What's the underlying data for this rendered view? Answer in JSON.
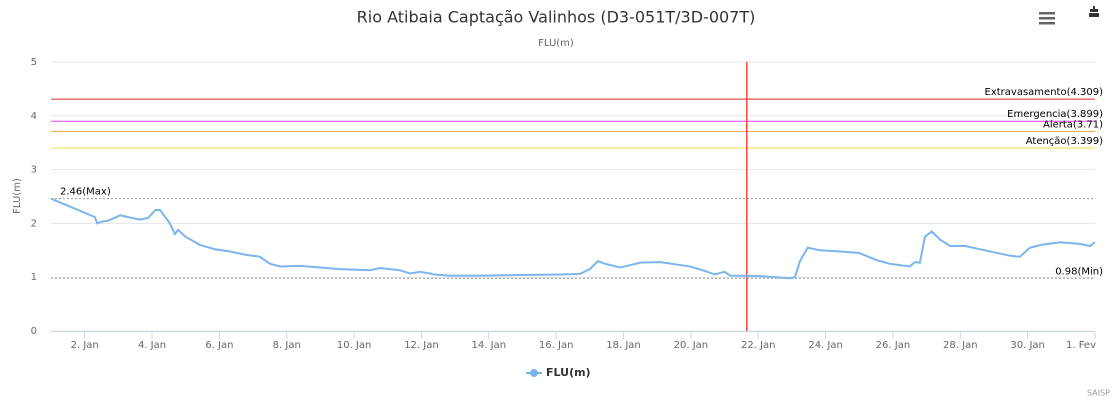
{
  "chart_data": {
    "type": "line",
    "title": "Rio Atibaia Captação Valinhos (D3-051T/3D-007T)",
    "subtitle": "FLU(m)",
    "y_label": "FLU(m)",
    "credit": "SAISP",
    "grid": true,
    "ylim": [
      0,
      5
    ],
    "yticks": [
      0,
      1,
      2,
      3,
      4,
      5
    ],
    "xlim": [
      1,
      32
    ],
    "xticks": [
      {
        "value": 2,
        "label": "2. Jan"
      },
      {
        "value": 4,
        "label": "4. Jan"
      },
      {
        "value": 6,
        "label": "6. Jan"
      },
      {
        "value": 8,
        "label": "8. Jan"
      },
      {
        "value": 10,
        "label": "10. Jan"
      },
      {
        "value": 12,
        "label": "12. Jan"
      },
      {
        "value": 14,
        "label": "14. Jan"
      },
      {
        "value": 16,
        "label": "16. Jan"
      },
      {
        "value": 18,
        "label": "18. Jan"
      },
      {
        "value": 20,
        "label": "20. Jan"
      },
      {
        "value": 22,
        "label": "22. Jan"
      },
      {
        "value": 24,
        "label": "24. Jan"
      },
      {
        "value": 26,
        "label": "26. Jan"
      },
      {
        "value": 28,
        "label": "28. Jan"
      },
      {
        "value": 30,
        "label": "30. Jan"
      },
      {
        "value": 32,
        "label": "1. Fev"
      }
    ],
    "plot_lines": [
      {
        "label": "Extravasamento(4.309)",
        "value": 4.309,
        "color": "#e0262b"
      },
      {
        "label": "Emergencia(3.899)",
        "value": 3.899,
        "color": "#ee3ff0"
      },
      {
        "label": "Alerta(3.71)",
        "value": 3.71,
        "color": "#f5a442"
      },
      {
        "label": "Atenção(3.399)",
        "value": 3.399,
        "color": "#eee24a"
      }
    ],
    "reference_lines": [
      {
        "label": "2.46(Max)",
        "value": 2.46,
        "position": "left"
      },
      {
        "label": "0.98(Min)",
        "value": 0.98,
        "position": "right"
      }
    ],
    "x_marker": {
      "value": 21.66,
      "color": "#ff4444"
    },
    "series": [
      {
        "name": "FLU(m)",
        "color": "#7cb5ec",
        "x": [
          1,
          2.3,
          2.37,
          2.5,
          2.7,
          3.05,
          3.64,
          3.88,
          4.1,
          4.24,
          4.53,
          4.68,
          4.77,
          5.0,
          5.42,
          5.87,
          6.3,
          6.76,
          7.2,
          7.5,
          7.8,
          8.4,
          9.0,
          9.58,
          10.47,
          10.77,
          11.36,
          11.66,
          11.96,
          12.4,
          12.85,
          13.74,
          14.9,
          16.1,
          16.7,
          17.0,
          17.24,
          17.45,
          17.9,
          18.5,
          19.1,
          19.97,
          20.4,
          20.7,
          21.0,
          21.16,
          22.05,
          22.94,
          23.09,
          23.24,
          23.47,
          23.83,
          24.4,
          25.0,
          25.5,
          25.9,
          26.5,
          26.65,
          26.8,
          26.95,
          27.15,
          27.4,
          27.7,
          28.14,
          28.73,
          29.47,
          29.77,
          30.07,
          30.4,
          30.96,
          31.55,
          31.85,
          32
        ],
        "values": [
          2.46,
          2.12,
          2.0,
          2.03,
          2.05,
          2.15,
          2.07,
          2.1,
          2.25,
          2.25,
          2.0,
          1.8,
          1.88,
          1.75,
          1.6,
          1.52,
          1.48,
          1.42,
          1.38,
          1.25,
          1.2,
          1.21,
          1.18,
          1.15,
          1.13,
          1.17,
          1.13,
          1.07,
          1.1,
          1.05,
          1.03,
          1.03,
          1.04,
          1.05,
          1.06,
          1.15,
          1.3,
          1.25,
          1.18,
          1.27,
          1.28,
          1.2,
          1.12,
          1.05,
          1.1,
          1.03,
          1.02,
          0.98,
          1.0,
          1.3,
          1.55,
          1.5,
          1.48,
          1.45,
          1.32,
          1.25,
          1.2,
          1.28,
          1.27,
          1.75,
          1.85,
          1.7,
          1.58,
          1.58,
          1.5,
          1.4,
          1.38,
          1.55,
          1.6,
          1.65,
          1.62,
          1.58,
          1.65
        ]
      }
    ]
  }
}
